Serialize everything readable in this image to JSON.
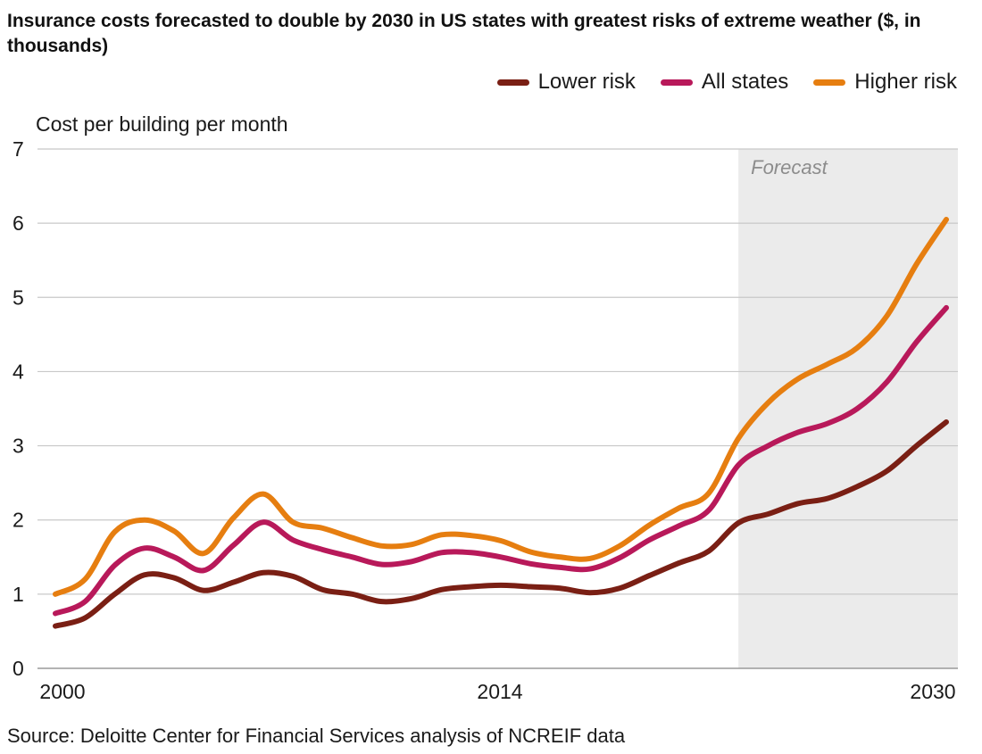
{
  "chart_data": {
    "type": "line",
    "title": "Insurance costs forecasted to double by 2030 in US states with greatest risks of extreme weather ($, in thousands)",
    "ylabel": "Cost per building per month",
    "xlabel": "",
    "x_tick_labels": [
      "2000",
      "2014",
      "2030"
    ],
    "y_ticks": [
      0,
      1,
      2,
      3,
      4,
      5,
      6,
      7
    ],
    "ylim": [
      0,
      7
    ],
    "xlim": [
      2000,
      2030
    ],
    "grid": true,
    "legend_placement": "top-right",
    "forecast": {
      "label": "Forecast",
      "start": 2023,
      "end": 2030.5,
      "color": "#ebebeb"
    },
    "x": [
      2000,
      2001,
      2002,
      2003,
      2004,
      2005,
      2006,
      2007,
      2008,
      2009,
      2010,
      2011,
      2012,
      2013,
      2014,
      2015,
      2016,
      2017,
      2018,
      2019,
      2020,
      2021,
      2022,
      2023,
      2024,
      2025,
      2026,
      2027,
      2028,
      2029,
      2030
    ],
    "series": [
      {
        "name": "Lower risk",
        "color": "#7a1f14",
        "values": [
          0.57,
          0.68,
          1.0,
          1.26,
          1.22,
          1.05,
          1.16,
          1.29,
          1.24,
          1.06,
          1.0,
          0.9,
          0.94,
          1.06,
          1.1,
          1.12,
          1.1,
          1.08,
          1.02,
          1.08,
          1.25,
          1.42,
          1.58,
          1.96,
          2.08,
          2.22,
          2.29,
          2.45,
          2.66,
          3.0,
          3.32
        ]
      },
      {
        "name": "All states",
        "color": "#b8195a",
        "values": [
          0.74,
          0.9,
          1.39,
          1.62,
          1.5,
          1.32,
          1.66,
          1.97,
          1.73,
          1.6,
          1.5,
          1.4,
          1.44,
          1.56,
          1.56,
          1.5,
          1.41,
          1.36,
          1.34,
          1.49,
          1.73,
          1.92,
          2.13,
          2.74,
          3.0,
          3.18,
          3.3,
          3.5,
          3.86,
          4.4,
          4.86
        ]
      },
      {
        "name": "Higher risk",
        "color": "#e67e10",
        "values": [
          1.0,
          1.2,
          1.84,
          2.0,
          1.85,
          1.55,
          2.03,
          2.35,
          1.97,
          1.89,
          1.76,
          1.65,
          1.67,
          1.8,
          1.79,
          1.72,
          1.57,
          1.5,
          1.48,
          1.65,
          1.93,
          2.16,
          2.36,
          3.1,
          3.58,
          3.9,
          4.1,
          4.32,
          4.75,
          5.45,
          6.05
        ]
      }
    ],
    "source": "Source: Deloitte Center for Financial Services analysis of NCREIF data"
  }
}
